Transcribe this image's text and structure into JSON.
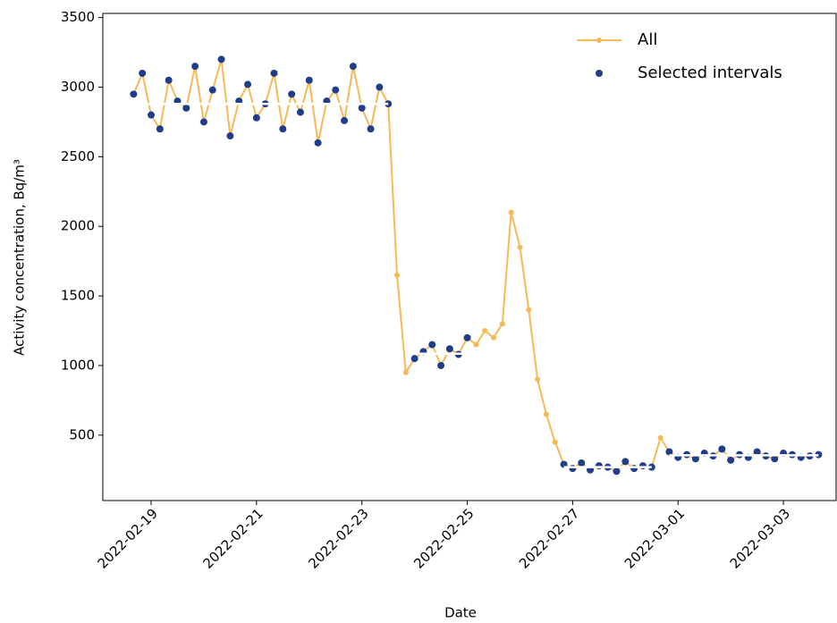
{
  "chart_data": {
    "type": "line",
    "x_label": "Date",
    "y_label": "Activity concentration, Bq/m³",
    "xlim": [
      "2022-02-18 02:00",
      "2022-03-04 00:00"
    ],
    "ylim": [
      30,
      3530
    ],
    "xticks": [
      "2022-02-19",
      "2022-02-21",
      "2022-02-23",
      "2022-02-25",
      "2022-02-27",
      "2022-03-01",
      "2022-03-03"
    ],
    "yticks": [
      500,
      1000,
      1500,
      2000,
      2500,
      3000,
      3500
    ],
    "legend": "upper right",
    "x": [
      "2022-02-18 16:00",
      "2022-02-18 20:00",
      "2022-02-19 00:00",
      "2022-02-19 04:00",
      "2022-02-19 08:00",
      "2022-02-19 12:00",
      "2022-02-19 16:00",
      "2022-02-19 20:00",
      "2022-02-20 00:00",
      "2022-02-20 04:00",
      "2022-02-20 08:00",
      "2022-02-20 12:00",
      "2022-02-20 16:00",
      "2022-02-20 20:00",
      "2022-02-21 00:00",
      "2022-02-21 04:00",
      "2022-02-21 08:00",
      "2022-02-21 12:00",
      "2022-02-21 16:00",
      "2022-02-21 20:00",
      "2022-02-22 00:00",
      "2022-02-22 04:00",
      "2022-02-22 08:00",
      "2022-02-22 12:00",
      "2022-02-22 16:00",
      "2022-02-22 20:00",
      "2022-02-23 00:00",
      "2022-02-23 04:00",
      "2022-02-23 08:00",
      "2022-02-23 12:00",
      "2022-02-23 16:00",
      "2022-02-23 20:00",
      "2022-02-24 00:00",
      "2022-02-24 04:00",
      "2022-02-24 08:00",
      "2022-02-24 12:00",
      "2022-02-24 16:00",
      "2022-02-24 20:00",
      "2022-02-25 00:00",
      "2022-02-25 04:00",
      "2022-02-25 08:00",
      "2022-02-25 12:00",
      "2022-02-25 16:00",
      "2022-02-25 20:00",
      "2022-02-26 00:00",
      "2022-02-26 04:00",
      "2022-02-26 08:00",
      "2022-02-26 12:00",
      "2022-02-26 16:00",
      "2022-02-26 20:00",
      "2022-02-27 00:00",
      "2022-02-27 04:00",
      "2022-02-27 08:00",
      "2022-02-27 12:00",
      "2022-02-27 16:00",
      "2022-02-27 20:00",
      "2022-02-28 00:00",
      "2022-02-28 04:00",
      "2022-02-28 08:00",
      "2022-02-28 12:00",
      "2022-02-28 16:00",
      "2022-02-28 20:00",
      "2022-03-01 00:00",
      "2022-03-01 04:00",
      "2022-03-01 08:00",
      "2022-03-01 12:00",
      "2022-03-01 16:00",
      "2022-03-01 20:00",
      "2022-03-02 00:00",
      "2022-03-02 04:00",
      "2022-03-02 08:00",
      "2022-03-02 12:00",
      "2022-03-02 16:00",
      "2022-03-02 20:00",
      "2022-03-03 00:00",
      "2022-03-03 04:00",
      "2022-03-03 08:00",
      "2022-03-03 12:00",
      "2022-03-03 16:00"
    ],
    "series": [
      {
        "name": "All",
        "color": "#f7b955",
        "style": "line-marker",
        "values": [
          2950,
          3100,
          2800,
          2700,
          3050,
          2900,
          2850,
          3150,
          2750,
          2980,
          3200,
          2650,
          2900,
          3020,
          2780,
          2880,
          3100,
          2700,
          2950,
          2820,
          3050,
          2600,
          2900,
          2980,
          2760,
          3150,
          2850,
          2700,
          3000,
          2880,
          1650,
          950,
          1050,
          1100,
          1150,
          1000,
          1120,
          1080,
          1200,
          1150,
          1250,
          1200,
          1300,
          2100,
          1850,
          1400,
          900,
          650,
          450,
          290,
          260,
          300,
          250,
          280,
          270,
          240,
          310,
          260,
          280,
          270,
          480,
          380,
          340,
          360,
          330,
          370,
          350,
          400,
          320,
          360,
          340,
          380,
          350,
          330,
          370,
          360,
          340,
          350,
          360
        ]
      },
      {
        "name": "Selected intervals",
        "color": "#1f3d8a",
        "style": "marker",
        "values": [
          2950,
          3100,
          2800,
          2700,
          3050,
          2900,
          2850,
          3150,
          2750,
          2980,
          3200,
          2650,
          2900,
          3020,
          2780,
          2880,
          3100,
          2700,
          2950,
          2820,
          3050,
          2600,
          2900,
          2980,
          2760,
          3150,
          2850,
          2700,
          3000,
          2880,
          null,
          null,
          1050,
          1100,
          1150,
          1000,
          1120,
          1080,
          1200,
          null,
          null,
          null,
          null,
          null,
          null,
          null,
          null,
          null,
          null,
          290,
          260,
          300,
          250,
          280,
          270,
          240,
          310,
          260,
          280,
          270,
          null,
          380,
          340,
          360,
          330,
          370,
          350,
          400,
          320,
          360,
          340,
          380,
          350,
          330,
          370,
          360,
          340,
          350,
          360
        ]
      }
    ],
    "means": [
      {
        "start": "2022-02-18 16:00",
        "end": "2022-02-23 12:00",
        "value": 2880
      },
      {
        "start": "2022-02-24 00:00",
        "end": "2022-02-25 00:00",
        "value": 1085
      },
      {
        "start": "2022-02-26 20:00",
        "end": "2022-02-28 12:00",
        "value": 270
      },
      {
        "start": "2022-02-28 20:00",
        "end": "2022-03-03 16:00",
        "value": 355
      }
    ],
    "means_color": "#ffffff"
  }
}
